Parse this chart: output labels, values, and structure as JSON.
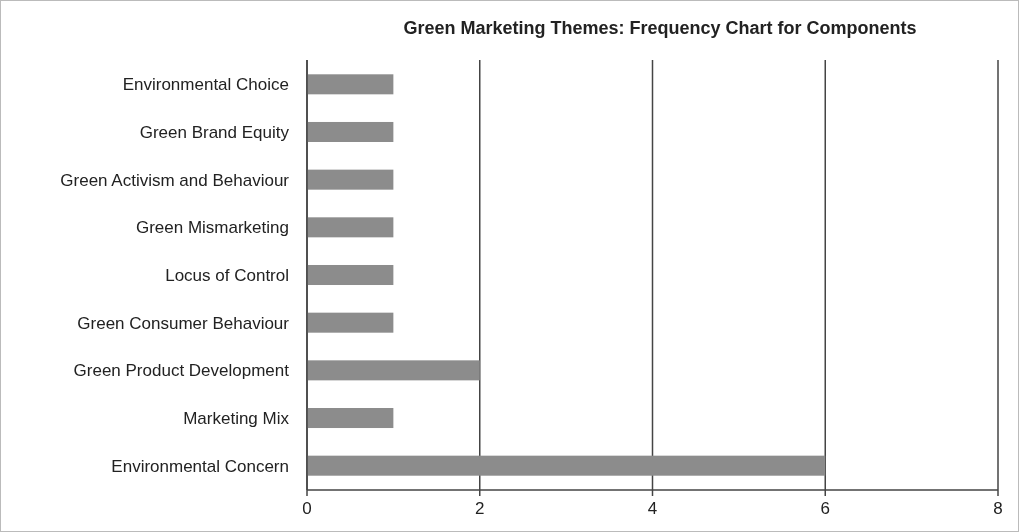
{
  "chart_data": {
    "type": "bar",
    "orientation": "horizontal",
    "title": "Green Marketing Themes: Frequency Chart for Components",
    "categories": [
      "Environmental Choice",
      "Green Brand Equity",
      "Green Activism and Behaviour",
      "Green Mismarketing",
      "Locus of Control",
      "Green Consumer Behaviour",
      "Green Product Development",
      "Marketing Mix",
      "Environmental Concern"
    ],
    "values": [
      1,
      1,
      1,
      1,
      1,
      1,
      2,
      1,
      6
    ],
    "color": "#8c8c8c",
    "xlim": [
      0,
      8
    ],
    "xticks": [
      0,
      2,
      4,
      6,
      8
    ],
    "grid": "x"
  }
}
